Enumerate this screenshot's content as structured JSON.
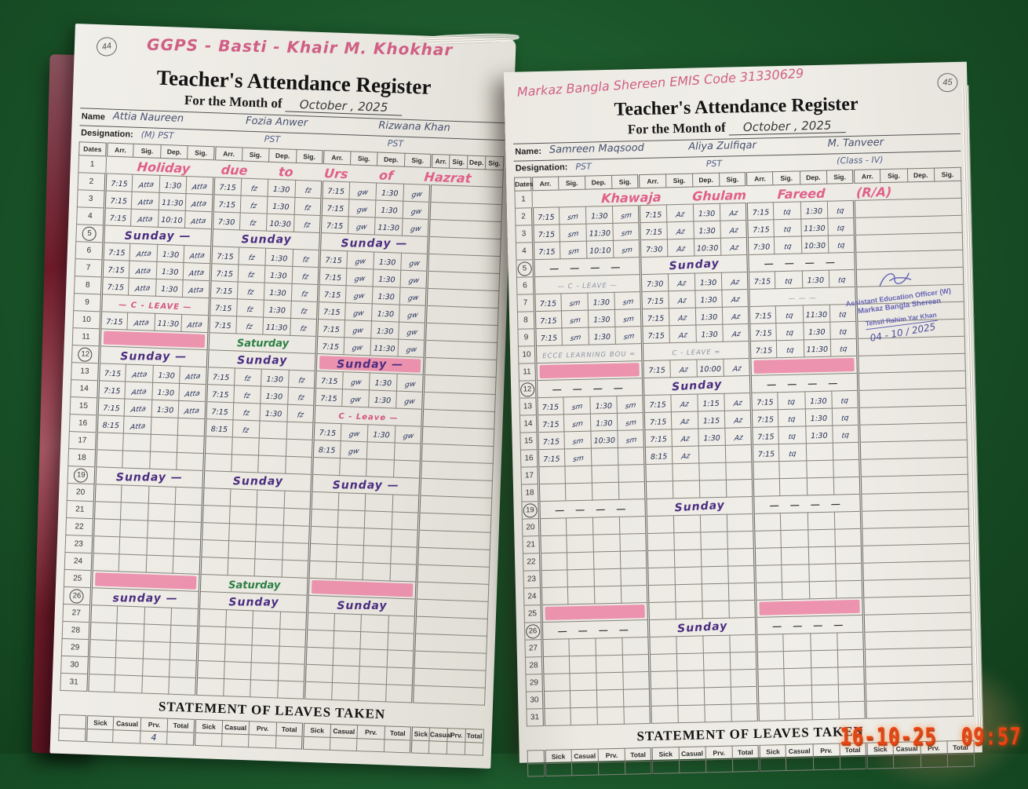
{
  "timestamp": "16-10-25  09:57",
  "colors": {
    "surface_green": "#1a5429",
    "highlight_pink": "#ec7fa2",
    "pink_ink": "#d4567f",
    "purple_ink": "#4a2c80",
    "green_ink": "#2e8044",
    "stamp_blue": "#5a58b0",
    "timestamp_orange": "#e64516"
  },
  "left_page": {
    "page_number": "44",
    "school_name": "GGPS - Basti - Khair M. Khokhar",
    "title": "Teacher's Attendance Register",
    "subtitle": "For the Month of",
    "month_year": "October , 2025",
    "name_label": "Name",
    "designation_label": "Designation:",
    "dates_label": "Dates",
    "col_headers": [
      "Arr.",
      "Sig.",
      "Dep.",
      "Sig."
    ],
    "teachers": [
      {
        "name": "Attia Naureen",
        "designation": "(M) PST",
        "sig": "Atta"
      },
      {
        "name": "Fozia Anwer",
        "designation": "PST",
        "sig": "fz"
      },
      {
        "name": "Rizwana Khan",
        "designation": "PST",
        "sig": "gw"
      }
    ],
    "rows": [
      {
        "d": "1",
        "note": "Holiday due to Urs of Hazrat",
        "ns": "pink"
      },
      {
        "d": "2",
        "b": [
          {
            "a": "7:15",
            "p": "1:30"
          },
          {
            "a": "7:15",
            "p": "1:30"
          },
          {
            "a": "7:15",
            "p": "1:30"
          }
        ]
      },
      {
        "d": "3",
        "b": [
          {
            "a": "7:15",
            "p": "11:30"
          },
          {
            "a": "7:15",
            "p": "1:30"
          },
          {
            "a": "7:15",
            "p": "1:30"
          }
        ]
      },
      {
        "d": "4",
        "b": [
          {
            "a": "7:15",
            "p": "10:10"
          },
          {
            "a": "7:30",
            "p": "10:30"
          },
          {
            "a": "7:15",
            "p": "11:30"
          }
        ]
      },
      {
        "d": "5",
        "c": true,
        "b": [
          {
            "t": "Sunday —",
            "s": "sunday"
          },
          {
            "t": "Sunday",
            "s": "sunday"
          },
          {
            "t": "Sunday —",
            "s": "sunday"
          }
        ]
      },
      {
        "d": "6",
        "b": [
          {
            "a": "7:15",
            "p": "1:30"
          },
          {
            "a": "7:15",
            "p": "1:30"
          },
          {
            "a": "7:15",
            "p": "1:30"
          }
        ]
      },
      {
        "d": "7",
        "b": [
          {
            "a": "7:15",
            "p": "1:30"
          },
          {
            "a": "7:15",
            "p": "1:30"
          },
          {
            "a": "7:15",
            "p": "1:30"
          }
        ]
      },
      {
        "d": "8",
        "b": [
          {
            "a": "7:15",
            "p": "1:30"
          },
          {
            "a": "7:15",
            "p": "1:30"
          },
          {
            "a": "7:15",
            "p": "1:30"
          }
        ]
      },
      {
        "d": "9",
        "b": [
          {
            "t": "— C - LEAVE —",
            "s": "leave"
          },
          {
            "a": "7:15",
            "p": "1:30"
          },
          {
            "a": "7:15",
            "p": "1:30"
          }
        ]
      },
      {
        "d": "10",
        "b": [
          {
            "a": "7:15",
            "p": "11:30"
          },
          {
            "a": "7:15",
            "p": "11:30"
          },
          {
            "a": "7:15",
            "p": "1:30"
          }
        ]
      },
      {
        "d": "11",
        "b": [
          {
            "h": true
          },
          {
            "t": "Saturday",
            "s": "saturday"
          },
          {
            "a": "7:15",
            "p": "11:30"
          }
        ]
      },
      {
        "d": "12",
        "c": true,
        "b": [
          {
            "t": "Sunday —",
            "s": "sunday"
          },
          {
            "t": "Sunday",
            "s": "sunday"
          },
          {
            "t": "Sunday —",
            "s": "sunday",
            "h": true
          }
        ]
      },
      {
        "d": "13",
        "b": [
          {
            "a": "7:15",
            "p": "1:30"
          },
          {
            "a": "7:15",
            "p": "1:30"
          },
          {
            "a": "7:15",
            "p": "1:30"
          }
        ]
      },
      {
        "d": "14",
        "b": [
          {
            "a": "7:15",
            "p": "1:30"
          },
          {
            "a": "7:15",
            "p": "1:30"
          },
          {
            "a": "7:15",
            "p": "1:30"
          }
        ]
      },
      {
        "d": "15",
        "b": [
          {
            "a": "7:15",
            "p": "1:30"
          },
          {
            "a": "7:15",
            "p": "1:30"
          },
          {
            "t": "C - Leave —",
            "s": "leave"
          }
        ]
      },
      {
        "d": "16",
        "b": [
          {
            "a": "8:15",
            "p": ""
          },
          {
            "a": "8:15",
            "p": ""
          },
          {
            "a": "7:15",
            "p": "1:30"
          }
        ]
      },
      {
        "d": "17",
        "b": [
          {},
          {},
          {
            "a": "8:15",
            "p": ""
          }
        ]
      },
      {
        "d": "18"
      },
      {
        "d": "19",
        "c": true,
        "b": [
          {
            "t": "Sunday —",
            "s": "sunday"
          },
          {
            "t": "Sunday",
            "s": "sunday"
          },
          {
            "t": "Sunday —",
            "s": "sunday"
          }
        ]
      },
      {
        "d": "20"
      },
      {
        "d": "21"
      },
      {
        "d": "22"
      },
      {
        "d": "23"
      },
      {
        "d": "24"
      },
      {
        "d": "25",
        "b": [
          {
            "h": true
          },
          {
            "t": "Saturday",
            "s": "saturday"
          },
          {
            "h": true
          }
        ]
      },
      {
        "d": "26",
        "c": true,
        "b": [
          {
            "t": "sunday —",
            "s": "sunday"
          },
          {
            "t": "Sunday",
            "s": "sunday"
          },
          {
            "t": "Sunday",
            "s": "sunday"
          }
        ]
      },
      {
        "d": "27"
      },
      {
        "d": "28"
      },
      {
        "d": "29"
      },
      {
        "d": "30"
      },
      {
        "d": "31"
      }
    ],
    "leaves": {
      "title": "STATEMENT OF LEAVES TAKEN",
      "cols": [
        "Sick",
        "Casual",
        "Prv.",
        "Total"
      ],
      "values": [
        [
          "",
          "",
          "4",
          ""
        ],
        [
          "",
          "",
          "",
          ""
        ],
        [
          "",
          "",
          "",
          ""
        ],
        [
          "",
          "",
          "",
          ""
        ]
      ]
    }
  },
  "right_page": {
    "page_number": "45",
    "school_name": "Markaz Bangla  Shereen  EMIS Code 31330629",
    "title": "Teacher's Attendance Register",
    "subtitle": "For the Month of",
    "month_year": "October , 2025",
    "name_label": "Name:",
    "designation_label": "Designation:",
    "dates_label": "Dates",
    "col_headers": [
      "Arr.",
      "Sig.",
      "Dep.",
      "Sig."
    ],
    "teachers": [
      {
        "name": "Samreen Maqsood",
        "designation": "PST",
        "sig": "sm"
      },
      {
        "name": "Aliya Zulfiqar",
        "designation": "PST",
        "sig": "Az"
      },
      {
        "name": "M. Tanveer",
        "designation": "(Class - IV)",
        "sig": "tq"
      }
    ],
    "rows": [
      {
        "d": "1",
        "note": "Khawaja Ghulam Fareed (R/A)",
        "ns": "pink"
      },
      {
        "d": "2",
        "b": [
          {
            "a": "7:15",
            "p": "1:30"
          },
          {
            "a": "7:15",
            "p": "1:30"
          },
          {
            "a": "7:15",
            "p": "1:30"
          }
        ]
      },
      {
        "d": "3",
        "b": [
          {
            "a": "7:15",
            "p": "11:30"
          },
          {
            "a": "7:15",
            "p": "1:30"
          },
          {
            "a": "7:15",
            "p": "11:30"
          }
        ]
      },
      {
        "d": "4",
        "b": [
          {
            "a": "7:15",
            "p": "10:10"
          },
          {
            "a": "7:30",
            "p": "10:30"
          },
          {
            "a": "7:30",
            "p": "10:30"
          }
        ]
      },
      {
        "d": "5",
        "c": true,
        "b": [
          {
            "t": "— — — —",
            "s": "dashes"
          },
          {
            "t": "Sunday",
            "s": "sunday"
          },
          {
            "t": "— — — —",
            "s": "dashes"
          }
        ]
      },
      {
        "d": "6",
        "b": [
          {
            "t": "— C - LEAVE —",
            "s": "faint"
          },
          {
            "a": "7:30",
            "p": "1:30"
          },
          {
            "a": "7:15",
            "p": "1:30"
          }
        ]
      },
      {
        "d": "7",
        "b": [
          {
            "a": "7:15",
            "p": "1:30"
          },
          {
            "a": "7:15",
            "p": "1:30"
          },
          {
            "t": "— — —",
            "s": "faint"
          }
        ]
      },
      {
        "d": "8",
        "b": [
          {
            "a": "7:15",
            "p": "1:30"
          },
          {
            "a": "7:15",
            "p": "1:30"
          },
          {
            "a": "7:15",
            "p": "11:30"
          }
        ]
      },
      {
        "d": "9",
        "b": [
          {
            "a": "7:15",
            "p": "1:30"
          },
          {
            "a": "7:15",
            "p": "1:30"
          },
          {
            "a": "7:15",
            "p": "1:30"
          }
        ]
      },
      {
        "d": "10",
        "b": [
          {
            "t": "ECCE LEARNING BOU =",
            "s": "faint"
          },
          {
            "t": "C - LEAVE =",
            "s": "faint"
          },
          {
            "a": "7:15",
            "p": "11:30"
          }
        ]
      },
      {
        "d": "11",
        "b": [
          {
            "h": true
          },
          {
            "a": "7:15",
            "p": "10:00"
          },
          {
            "h": true
          }
        ]
      },
      {
        "d": "12",
        "c": true,
        "b": [
          {
            "t": "— — — —",
            "s": "dashes"
          },
          {
            "t": "Sunday",
            "s": "sunday"
          },
          {
            "t": "— — — —",
            "s": "dashes"
          }
        ]
      },
      {
        "d": "13",
        "b": [
          {
            "a": "7:15",
            "p": "1:30"
          },
          {
            "a": "7:15",
            "p": "1:15"
          },
          {
            "a": "7:15",
            "p": "1:30"
          }
        ]
      },
      {
        "d": "14",
        "b": [
          {
            "a": "7:15",
            "p": "1:30"
          },
          {
            "a": "7:15",
            "p": "1:15"
          },
          {
            "a": "7:15",
            "p": "1:30"
          }
        ]
      },
      {
        "d": "15",
        "b": [
          {
            "a": "7:15",
            "p": "10:30"
          },
          {
            "a": "7:15",
            "p": "1:30"
          },
          {
            "a": "7:15",
            "p": "1:30"
          }
        ]
      },
      {
        "d": "16",
        "b": [
          {
            "a": "7:15",
            "p": ""
          },
          {
            "a": "8:15",
            "p": ""
          },
          {
            "a": "7:15",
            "p": ""
          }
        ]
      },
      {
        "d": "17"
      },
      {
        "d": "18"
      },
      {
        "d": "19",
        "c": true,
        "b": [
          {
            "t": "— — — —",
            "s": "dashes"
          },
          {
            "t": "Sunday",
            "s": "sunday"
          },
          {
            "t": "— — — —",
            "s": "dashes"
          }
        ]
      },
      {
        "d": "20"
      },
      {
        "d": "21"
      },
      {
        "d": "22"
      },
      {
        "d": "23"
      },
      {
        "d": "24"
      },
      {
        "d": "25",
        "b": [
          {
            "h": true
          },
          {},
          {
            "h": true
          }
        ]
      },
      {
        "d": "26",
        "c": true,
        "b": [
          {
            "t": "— — — —",
            "s": "dashes"
          },
          {
            "t": "Sunday",
            "s": "sunday"
          },
          {
            "t": "— — — —",
            "s": "dashes"
          }
        ]
      },
      {
        "d": "27"
      },
      {
        "d": "28"
      },
      {
        "d": "29"
      },
      {
        "d": "30"
      },
      {
        "d": "31"
      }
    ],
    "leaves": {
      "title": "STATEMENT OF LEAVES TAKEN",
      "cols": [
        "Sick",
        "Casual",
        "Prv.",
        "Total"
      ],
      "values": [
        [
          "",
          "",
          "",
          ""
        ],
        [
          "",
          "",
          "",
          ""
        ],
        [
          "",
          "",
          "",
          ""
        ],
        [
          "",
          "",
          "",
          ""
        ]
      ]
    },
    "stamp": {
      "line1": "Assistant Education Officer (W)",
      "line2": "Markaz Bangla Shereen",
      "line3": "Tehsil Rahim Yar Khan",
      "date": "04 - 10 / 2025"
    }
  }
}
